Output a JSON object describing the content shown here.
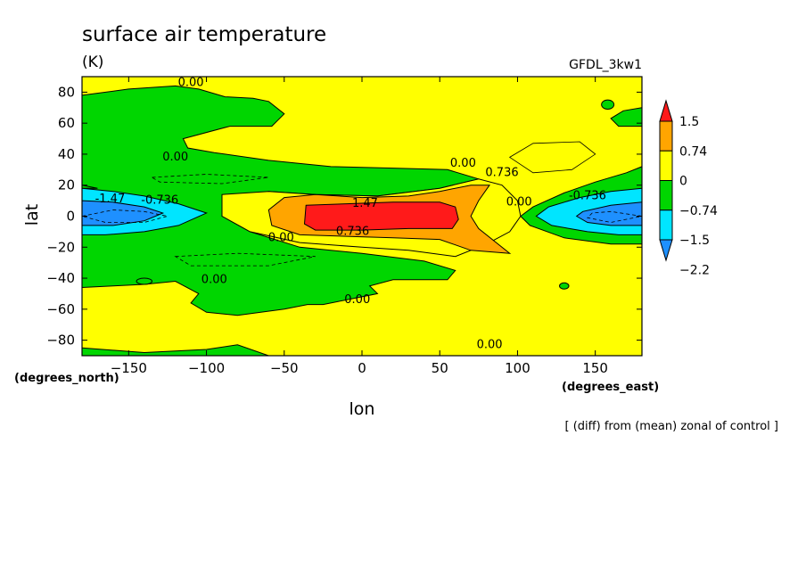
{
  "chart_data": {
    "type": "heatmap",
    "title": "surface air temperature",
    "units": "(K)",
    "model": "GFDL_3kw1",
    "xlabel": "lon",
    "ylabel": "lat",
    "x_sublabel": "(degrees_east)",
    "y_sublabel": "(degrees_north)",
    "note": "[ (diff) from (mean) zonal of control ]",
    "xlim": [
      -180,
      180
    ],
    "ylim": [
      -90,
      90
    ],
    "x_ticks": [
      -150,
      -100,
      -50,
      0,
      50,
      100,
      150
    ],
    "x_tick_labels": [
      "−150",
      "−100",
      "−50",
      "0",
      "50",
      "100",
      "150"
    ],
    "y_ticks": [
      80,
      60,
      40,
      20,
      0,
      -20,
      -40,
      -60,
      -80
    ],
    "y_tick_labels": [
      "80",
      "60",
      "40",
      "20",
      "0",
      "−20",
      "−40",
      "−60",
      "−80"
    ],
    "colorbar": {
      "colors": [
        "#1e90ff",
        "#00e5ff",
        "#00d600",
        "#ffff00",
        "#ffa500",
        "#ff1a1a"
      ],
      "labels": [
        "1.5",
        "0.74",
        "0",
        "−0.74",
        "−1.5",
        "−2.2"
      ]
    },
    "contour_labels": [
      {
        "text": "0.00",
        "lon": -110,
        "lat": 84
      },
      {
        "text": "0.00",
        "lon": -120,
        "lat": 36
      },
      {
        "text": "0.00",
        "lon": 65,
        "lat": 32
      },
      {
        "text": "0.736",
        "lon": 90,
        "lat": 26
      },
      {
        "text": "-1.47",
        "lon": -162,
        "lat": 9
      },
      {
        "text": "-0.736",
        "lon": -130,
        "lat": 8
      },
      {
        "text": "1.47",
        "lon": 2,
        "lat": 6
      },
      {
        "text": "0.00",
        "lon": 101,
        "lat": 7
      },
      {
        "text": "-0.736",
        "lon": 145,
        "lat": 11
      },
      {
        "text": "0.00",
        "lon": -52,
        "lat": -16
      },
      {
        "text": "0.736",
        "lon": -6,
        "lat": -12
      },
      {
        "text": "0.00",
        "lon": -95,
        "lat": -43
      },
      {
        "text": "0.00",
        "lon": -3,
        "lat": -56
      },
      {
        "text": "0.00",
        "lon": 82,
        "lat": -85
      }
    ]
  }
}
